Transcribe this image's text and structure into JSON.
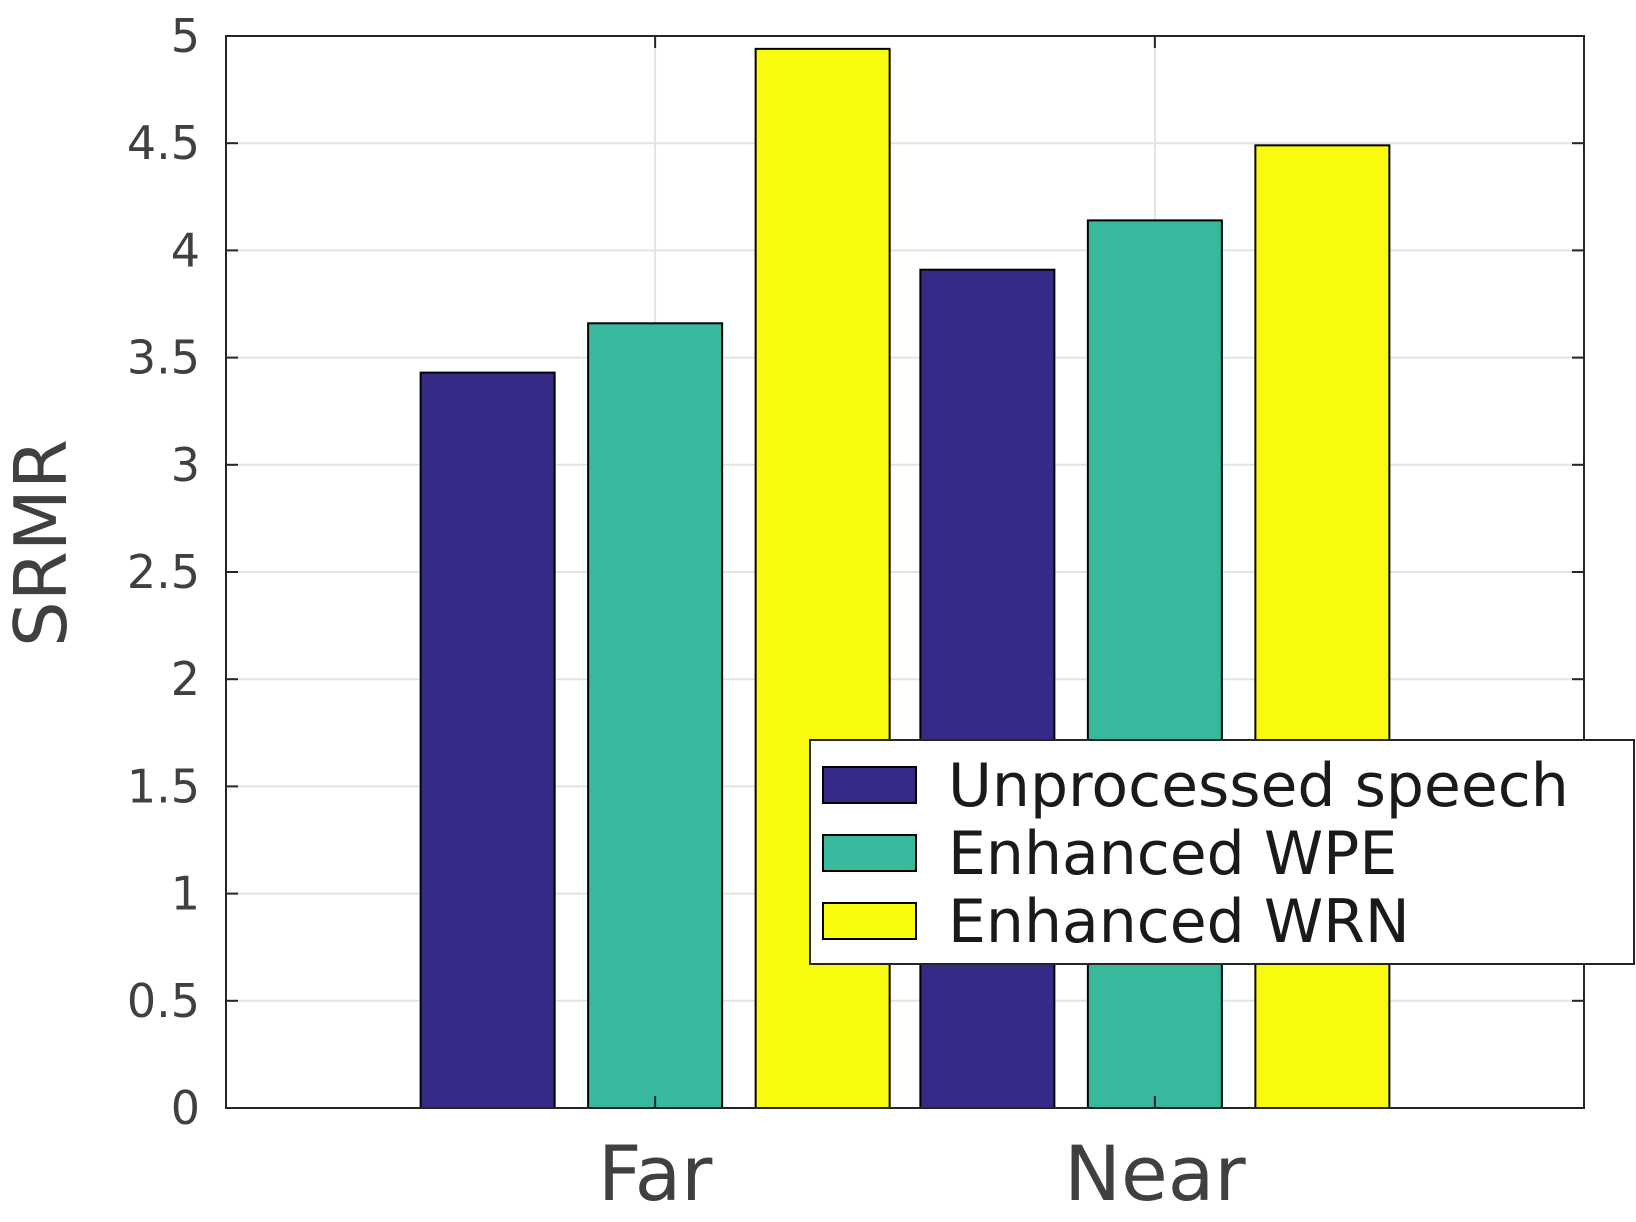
{
  "chart_data": {
    "type": "bar",
    "categories": [
      "Far",
      "Near"
    ],
    "series": [
      {
        "name": "Unprocessed speech",
        "color": "#352a87",
        "values": [
          3.43,
          3.91
        ]
      },
      {
        "name": "Enhanced WPE",
        "color": "#38b99e",
        "values": [
          3.66,
          4.14
        ]
      },
      {
        "name": "Enhanced WRN",
        "color": "#f9fb0e",
        "values": [
          4.94,
          4.49
        ]
      }
    ],
    "title": "",
    "xlabel": "",
    "ylabel": "SRMR",
    "ylim": [
      0,
      5
    ],
    "yticks": [
      0,
      0.5,
      1,
      1.5,
      2,
      2.5,
      3,
      3.5,
      4,
      4.5,
      5
    ],
    "ytick_labels": [
      "0",
      "0.5",
      "1",
      "1.5",
      "2",
      "2.5",
      "3",
      "3.5",
      "4",
      "4.5",
      "5"
    ],
    "grid": true,
    "legend_position": "bottom-right"
  }
}
